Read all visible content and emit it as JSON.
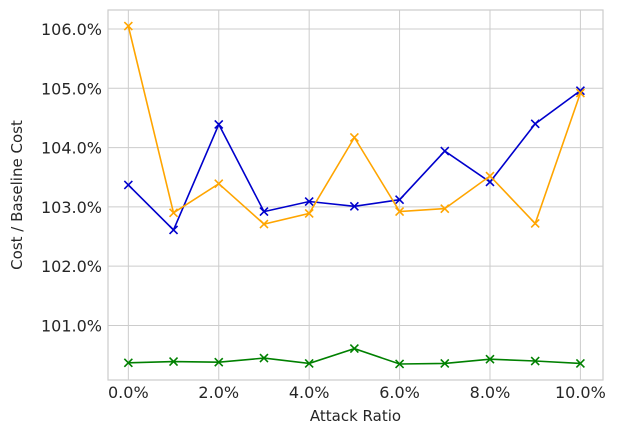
{
  "chart_data": {
    "type": "line",
    "xlabel": "Attack Ratio",
    "ylabel": "Cost / Baseline Cost",
    "x": [
      0,
      1,
      2,
      3,
      4,
      5,
      6,
      7,
      8,
      9,
      10
    ],
    "xticks": [
      0,
      2,
      4,
      6,
      8,
      10
    ],
    "xtick_labels": [
      "0.0%",
      "2.0%",
      "4.0%",
      "6.0%",
      "8.0%",
      "10.0%"
    ],
    "xlim": [
      -0.45,
      10.5
    ],
    "yticks": [
      101,
      102,
      103,
      104,
      105,
      106
    ],
    "ytick_labels": [
      "101.0%",
      "102.0%",
      "103.0%",
      "104.0%",
      "105.0%",
      "106.0%"
    ],
    "ylim": [
      100.08,
      106.32
    ],
    "grid": true,
    "marker": "x",
    "series": [
      {
        "color": "#0000cc",
        "values": [
          103.37,
          102.61,
          104.39,
          102.92,
          103.09,
          103.01,
          103.12,
          103.94,
          103.42,
          104.4,
          104.96
        ]
      },
      {
        "color": "#ffa500",
        "values": [
          106.05,
          102.9,
          103.39,
          102.71,
          102.89,
          104.17,
          102.92,
          102.97,
          103.52,
          102.72,
          104.92
        ]
      },
      {
        "color": "#008000",
        "values": [
          100.37,
          100.39,
          100.38,
          100.45,
          100.36,
          100.61,
          100.35,
          100.36,
          100.43,
          100.4,
          100.36
        ]
      }
    ]
  }
}
